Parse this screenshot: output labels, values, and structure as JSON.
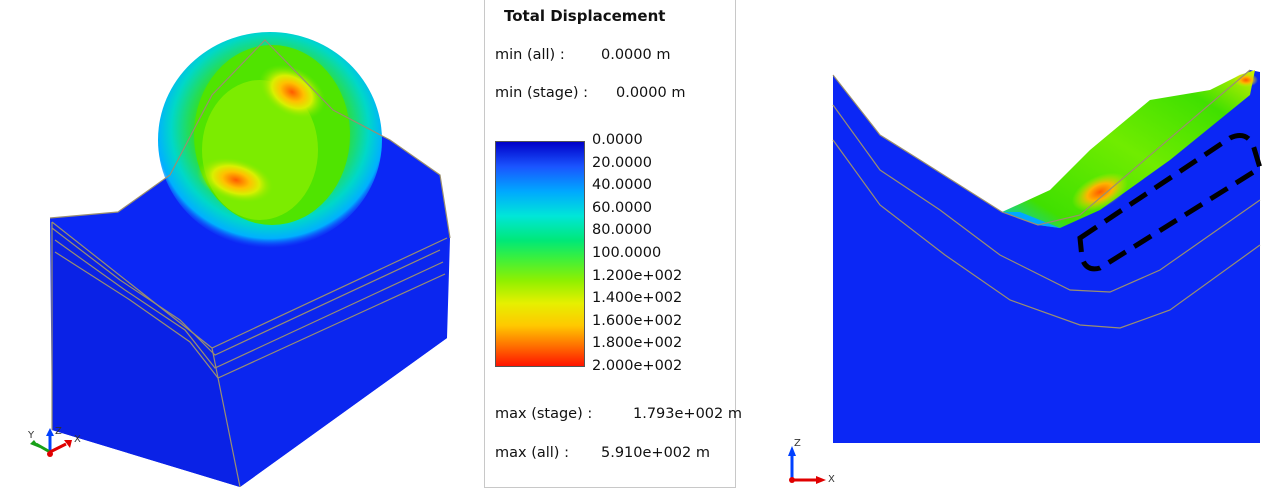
{
  "legend": {
    "title": "Total Displacement",
    "min_all": {
      "label": "min (all) :",
      "value": "0.0000 m"
    },
    "min_stage": {
      "label": "min (stage) :",
      "value": "0.0000 m"
    },
    "ticks": [
      "0.0000",
      "20.0000",
      "40.0000",
      "60.0000",
      "80.0000",
      "100.0000",
      "1.200e+002",
      "1.400e+002",
      "1.600e+002",
      "1.800e+002",
      "2.000e+002"
    ],
    "max_stage": {
      "label": "max (stage) :",
      "value": "1.793e+002 m"
    },
    "max_all": {
      "label": "max (all) :",
      "value": "5.910e+002 m"
    },
    "colors": [
      "#0000c8",
      "#1a55ff",
      "#00a8ff",
      "#00e6d8",
      "#00e878",
      "#3cf03c",
      "#90f000",
      "#e6f000",
      "#ffc800",
      "#ff7000",
      "#ff1400"
    ]
  },
  "axes_3d": {
    "x": "X",
    "y": "Y",
    "z": "Z"
  },
  "axes_2d": {
    "x": "X",
    "z": "Z"
  }
}
